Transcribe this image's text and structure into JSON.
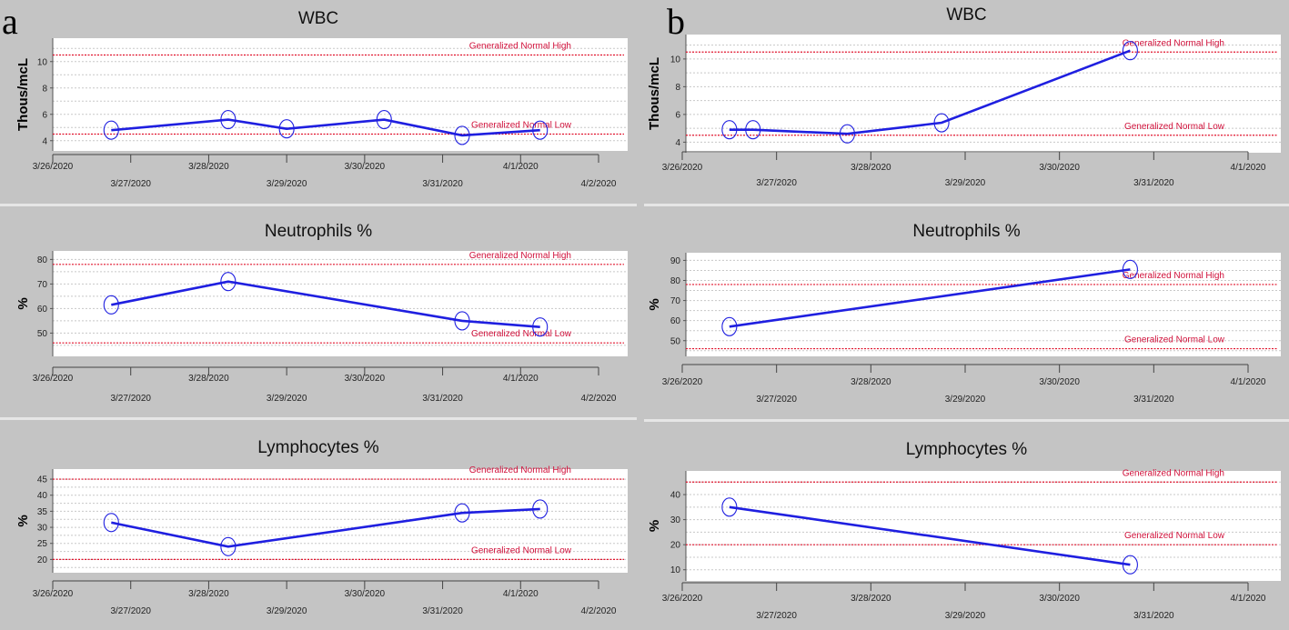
{
  "labels": {
    "a": "a",
    "b": "b"
  },
  "ref_labels": {
    "high": "Generalized Normal High",
    "low": "Generalized Normal Low"
  },
  "colors": {
    "series": "#1f1fe0",
    "reference": "#e0102a",
    "plot_bg": "#ffffff",
    "background": "#c4c4c4"
  },
  "chart_data": [
    {
      "panel": "a",
      "type": "line",
      "title": "WBC",
      "ylabel": "Thous/mcL",
      "xlim": [
        "3/26/2020",
        "4/2/2020"
      ],
      "x_ticks_top": [
        "3/26/2020",
        "3/28/2020",
        "3/30/2020",
        "4/1/2020"
      ],
      "x_ticks_bottom": [
        "3/27/2020",
        "3/29/2020",
        "3/31/2020",
        "4/2/2020"
      ],
      "ylim": [
        3.5,
        11.5
      ],
      "y_ticks": [
        4,
        6,
        8,
        10
      ],
      "normal_high": 10.5,
      "normal_low": 4.5,
      "x": [
        "3/26/2020 18:00",
        "3/28/2020 06:00",
        "3/29/2020 00:00",
        "3/30/2020 06:00",
        "3/31/2020 06:00",
        "4/1/2020 06:00"
      ],
      "y": [
        4.8,
        5.6,
        4.9,
        5.6,
        4.4,
        4.8
      ]
    },
    {
      "panel": "a",
      "type": "line",
      "title": "Neutrophils %",
      "ylabel": "%",
      "xlim": [
        "3/26/2020",
        "4/2/2020"
      ],
      "x_ticks_top": [
        "3/26/2020",
        "3/28/2020",
        "3/30/2020",
        "4/1/2020"
      ],
      "x_ticks_bottom": [
        "3/27/2020",
        "3/29/2020",
        "3/31/2020",
        "4/2/2020"
      ],
      "ylim": [
        42,
        82
      ],
      "y_ticks": [
        50,
        60,
        70,
        80
      ],
      "normal_high": 78,
      "normal_low": 46,
      "x": [
        "3/26/2020 18:00",
        "3/28/2020 06:00",
        "3/31/2020 06:00",
        "4/1/2020 06:00"
      ],
      "y": [
        61.5,
        71.0,
        55.0,
        52.5
      ]
    },
    {
      "panel": "a",
      "type": "line",
      "title": "Lymphocytes %",
      "ylabel": "%",
      "xlim": [
        "3/26/2020",
        "4/2/2020"
      ],
      "x_ticks_top": [
        "3/26/2020",
        "3/28/2020",
        "3/30/2020",
        "4/1/2020"
      ],
      "x_ticks_bottom": [
        "3/27/2020",
        "3/29/2020",
        "3/31/2020",
        "4/2/2020"
      ],
      "ylim": [
        17,
        47
      ],
      "y_ticks": [
        20,
        25,
        30,
        35,
        40,
        45
      ],
      "normal_high": 45,
      "normal_low": 20,
      "x": [
        "3/26/2020 18:00",
        "3/28/2020 06:00",
        "3/31/2020 06:00",
        "4/1/2020 06:00"
      ],
      "y": [
        31.5,
        24.0,
        34.5,
        35.7
      ]
    },
    {
      "panel": "b",
      "type": "line",
      "title": "WBC",
      "ylabel": "Thous/mcL",
      "xlim": [
        "3/26/2020",
        "4/1/2020"
      ],
      "x_ticks_top": [
        "3/26/2020",
        "3/28/2020",
        "3/30/2020",
        "4/1/2020"
      ],
      "x_ticks_bottom": [
        "3/27/2020",
        "3/29/2020",
        "3/31/2020"
      ],
      "ylim": [
        3.5,
        11.5
      ],
      "y_ticks": [
        4,
        6,
        8,
        10
      ],
      "normal_high": 10.5,
      "normal_low": 4.5,
      "x": [
        "3/26/2020 12:00",
        "3/26/2020 18:00",
        "3/27/2020 18:00",
        "3/28/2020 18:00",
        "3/30/2020 18:00"
      ],
      "y": [
        4.9,
        4.9,
        4.6,
        5.4,
        10.6
      ]
    },
    {
      "panel": "b",
      "type": "line",
      "title": "Neutrophils %",
      "ylabel": "%",
      "xlim": [
        "3/26/2020",
        "4/1/2020"
      ],
      "x_ticks_top": [
        "3/26/2020",
        "3/28/2020",
        "3/30/2020",
        "4/1/2020"
      ],
      "x_ticks_bottom": [
        "3/27/2020",
        "3/29/2020",
        "3/31/2020"
      ],
      "ylim": [
        44,
        92
      ],
      "y_ticks": [
        50,
        60,
        70,
        80,
        90
      ],
      "normal_high": 78,
      "normal_low": 46,
      "x": [
        "3/26/2020 12:00",
        "3/30/2020 18:00"
      ],
      "y": [
        57.0,
        85.5
      ]
    },
    {
      "panel": "b",
      "type": "line",
      "title": "Lymphocytes %",
      "ylabel": "%",
      "xlim": [
        "3/26/2020",
        "4/1/2020"
      ],
      "x_ticks_top": [
        "3/26/2020",
        "3/28/2020",
        "3/30/2020",
        "4/1/2020"
      ],
      "x_ticks_bottom": [
        "3/27/2020",
        "3/29/2020",
        "3/31/2020"
      ],
      "ylim": [
        7,
        48
      ],
      "y_ticks": [
        10,
        20,
        30,
        40
      ],
      "normal_high": 45,
      "normal_low": 20,
      "x": [
        "3/26/2020 12:00",
        "3/30/2020 18:00"
      ],
      "y": [
        35.0,
        12.0
      ]
    }
  ]
}
